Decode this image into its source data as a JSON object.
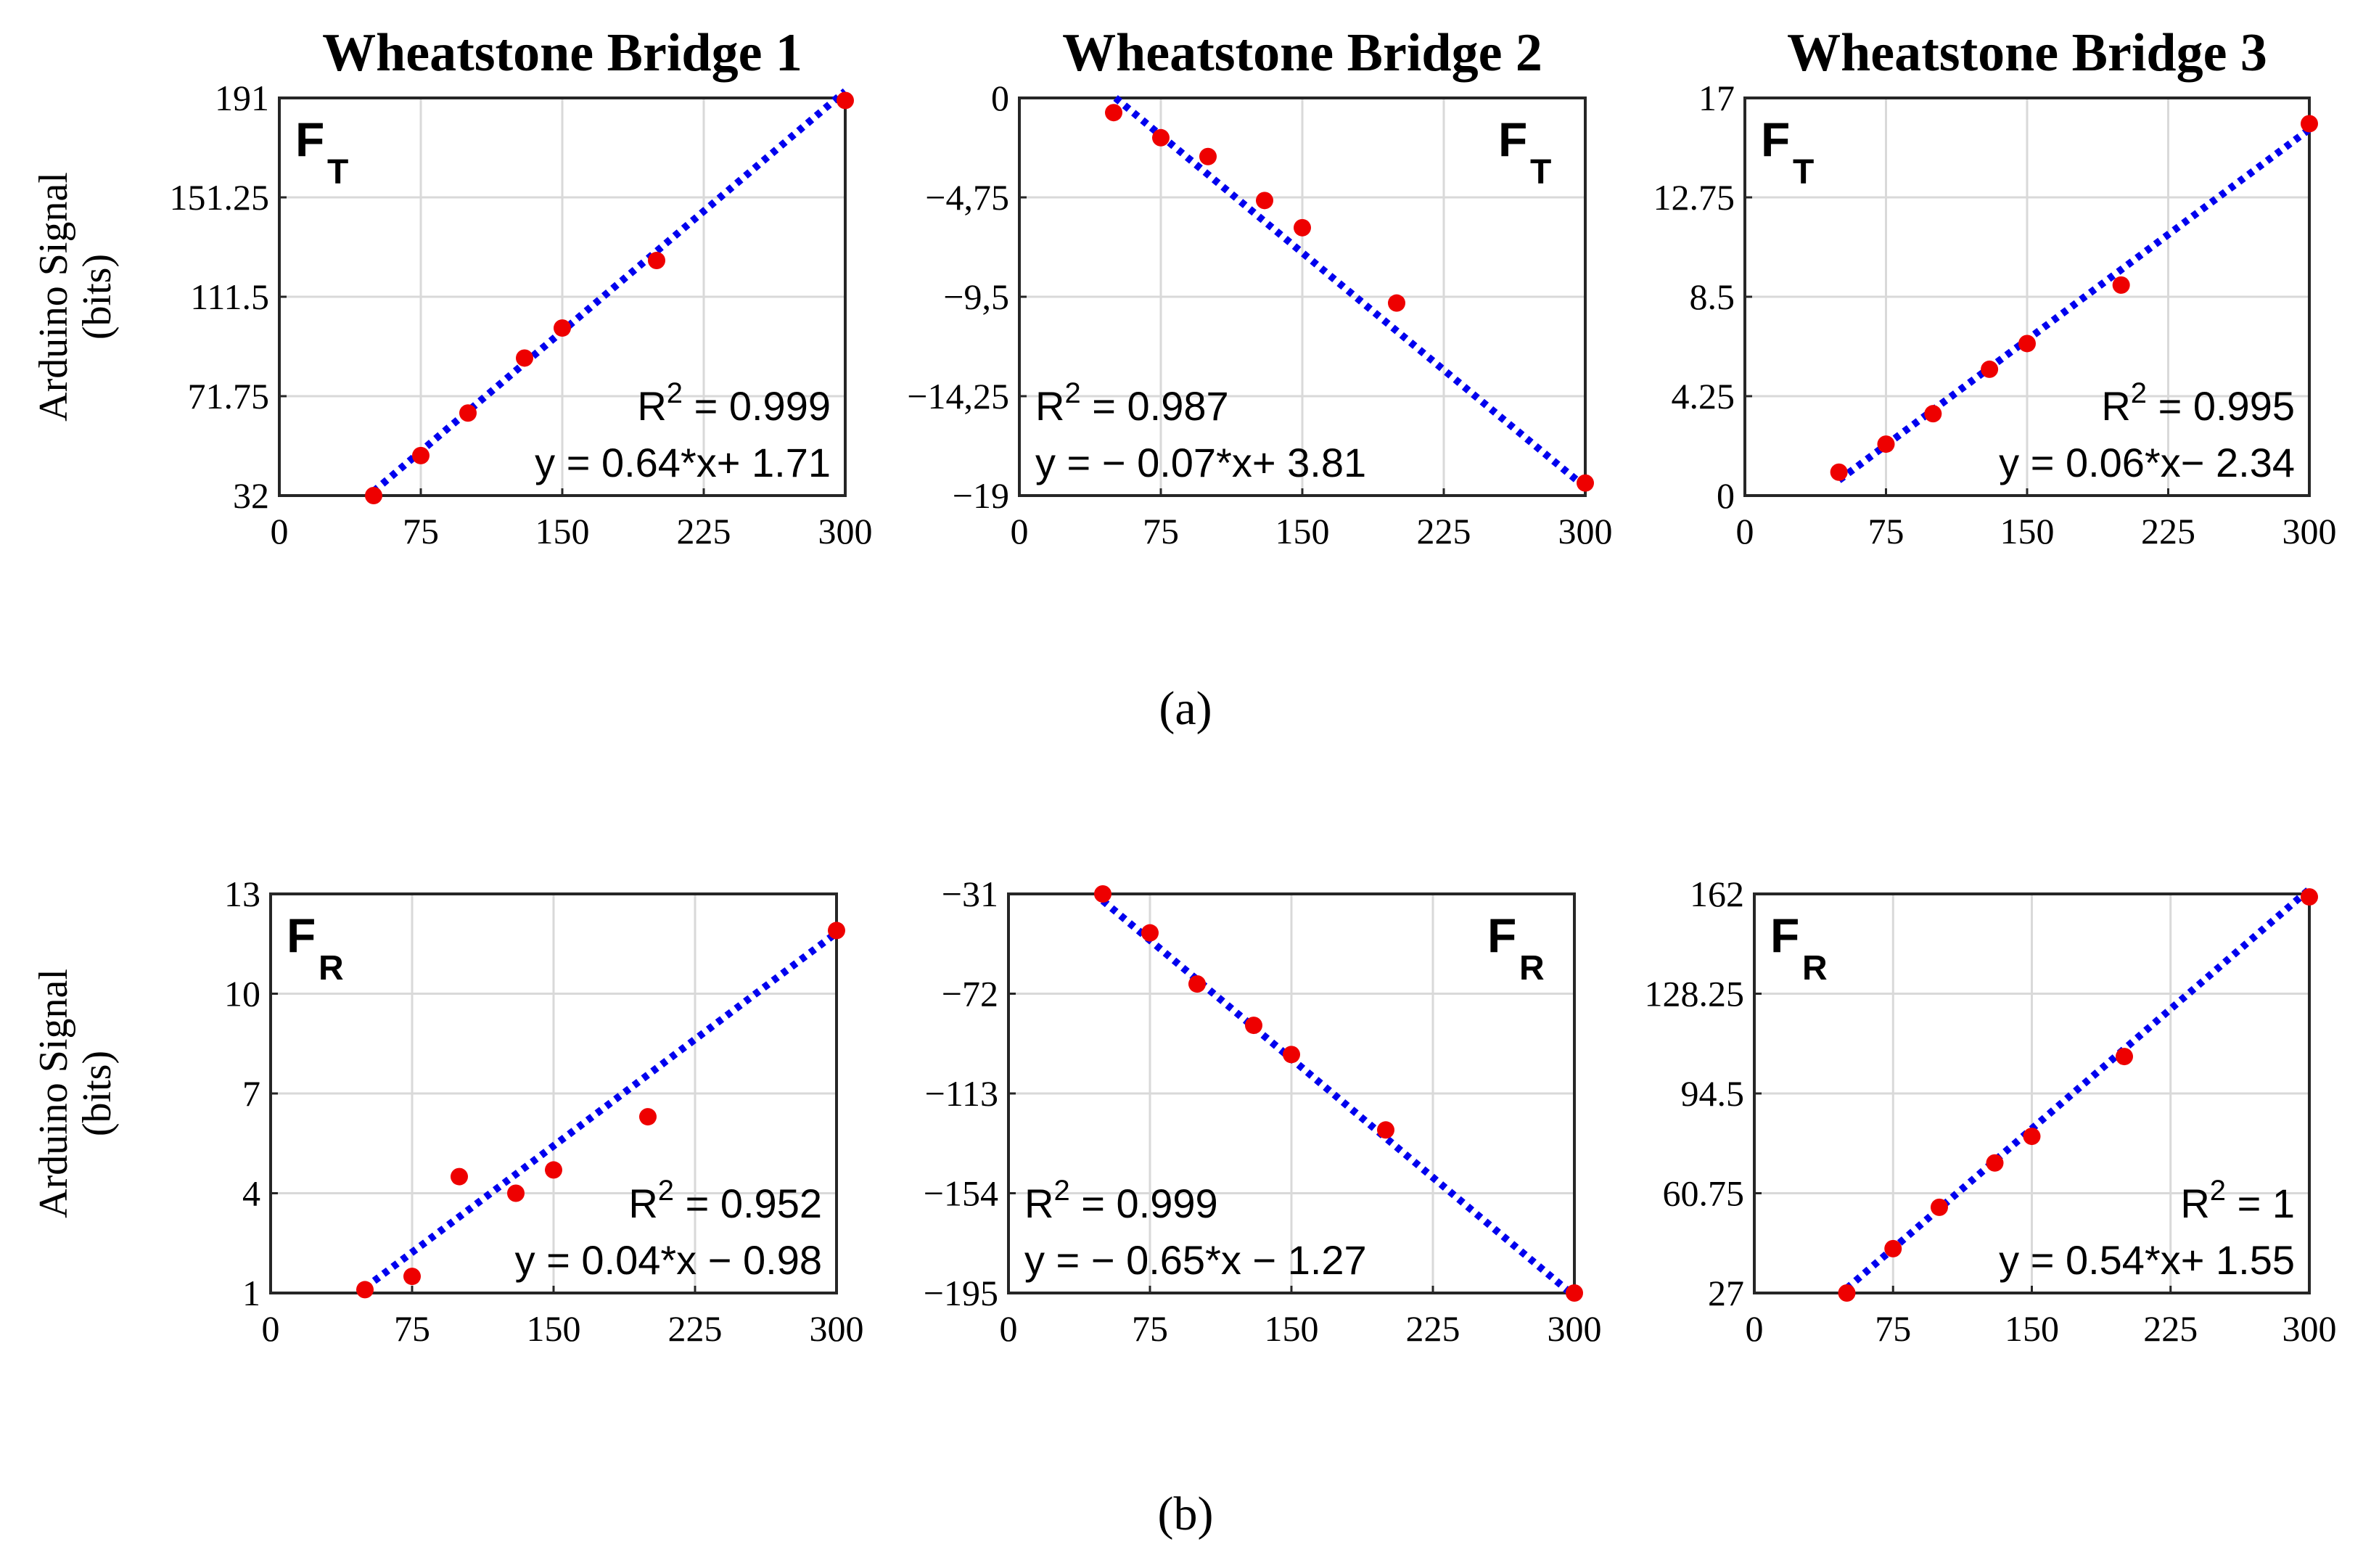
{
  "figure": {
    "caption_a": "(a)",
    "caption_b": "(b)",
    "ylabel_line1": "Arduino Signal",
    "ylabel_line2": "(bits)",
    "colors": {
      "points": "#ee0000",
      "fit_line": "#0000ee",
      "grid": "#d9d9d9",
      "frame": "#262626"
    }
  },
  "chart_data": [
    {
      "id": "a1",
      "type": "scatter",
      "title": "Wheatstone Bridge 1",
      "force": "F",
      "force_sub": "T",
      "force_pos": "top-left",
      "xlim": [
        0,
        300
      ],
      "xticks": [
        "0",
        "75",
        "150",
        "225",
        "300"
      ],
      "ylim": [
        32,
        191
      ],
      "yticks": [
        "32",
        "71.75",
        "111.5",
        "151.25",
        "191"
      ],
      "x": [
        50,
        75,
        100,
        130,
        150,
        200,
        300
      ],
      "y": [
        32,
        48,
        65,
        87,
        99,
        126,
        190
      ],
      "fit": {
        "slope": 0.64,
        "intercept": 1.71,
        "x_range": [
          50,
          300
        ]
      },
      "r2": "R",
      "r2_sup": "2",
      "r2_text": " = 0.999",
      "equation": "y = 0.64*x+ 1.71",
      "annotation_pos": "bottom-right"
    },
    {
      "id": "a2",
      "type": "scatter",
      "title": "Wheatstone Bridge 2",
      "force": "F",
      "force_sub": "T",
      "force_pos": "top-right",
      "xlim": [
        0,
        300
      ],
      "xticks": [
        "0",
        "75",
        "150",
        "225",
        "300"
      ],
      "ylim": [
        -19,
        0
      ],
      "yticks": [
        "−19",
        "−14,25",
        "−9,5",
        "−4,75",
        "0"
      ],
      "x": [
        50,
        75,
        100,
        130,
        150,
        200,
        300
      ],
      "y": [
        -0.7,
        -1.9,
        -2.8,
        -4.9,
        -6.2,
        -9.8,
        -18.4
      ],
      "fit": {
        "slope": -0.0747,
        "intercept": 3.81,
        "x_range": [
          51,
          300
        ]
      },
      "r2": "R",
      "r2_sup": "2",
      "r2_text": " = 0.987",
      "equation": "y = − 0.07*x+ 3.81",
      "annotation_pos": "bottom-left"
    },
    {
      "id": "a3",
      "type": "scatter",
      "title": "Wheatstone Bridge 3",
      "force": "F",
      "force_sub": "T",
      "force_pos": "top-left",
      "xlim": [
        0,
        300
      ],
      "xticks": [
        "0",
        "75",
        "150",
        "225",
        "300"
      ],
      "ylim": [
        0,
        17
      ],
      "yticks": [
        "0",
        "4.25",
        "8.5",
        "12.75",
        "17"
      ],
      "x": [
        50,
        75,
        100,
        130,
        150,
        200,
        300
      ],
      "y": [
        1.0,
        2.2,
        3.5,
        5.4,
        6.5,
        9.0,
        15.9
      ],
      "fit": {
        "slope": 0.06,
        "intercept": -2.34,
        "x_range": [
          50,
          300
        ]
      },
      "r2": "R",
      "r2_sup": "2",
      "r2_text": " = 0.995",
      "equation": "y = 0.06*x−  2.34",
      "annotation_pos": "bottom-right"
    },
    {
      "id": "b1",
      "type": "scatter",
      "title": "",
      "force": "F",
      "force_sub": "R",
      "force_pos": "top-left",
      "xlim": [
        0,
        300
      ],
      "xticks": [
        "0",
        "75",
        "150",
        "225",
        "300"
      ],
      "ylim": [
        1,
        13
      ],
      "yticks": [
        "1",
        "4",
        "7",
        "10",
        "13"
      ],
      "x": [
        50,
        75,
        100,
        130,
        150,
        200,
        300
      ],
      "y": [
        1.1,
        1.5,
        4.5,
        4.0,
        4.7,
        6.3,
        11.9
      ],
      "fit": {
        "slope": 0.0427,
        "intercept": -0.98,
        "x_range": [
          50,
          300
        ]
      },
      "r2": "R",
      "r2_sup": "2",
      "r2_text": " = 0.952",
      "equation": "y = 0.04*x − 0.98",
      "annotation_pos": "bottom-right"
    },
    {
      "id": "b2",
      "type": "scatter",
      "title": "",
      "force": "F",
      "force_sub": "R",
      "force_pos": "top-right",
      "xlim": [
        0,
        300
      ],
      "xticks": [
        "0",
        "75",
        "150",
        "225",
        "300"
      ],
      "ylim": [
        -195,
        -31
      ],
      "yticks": [
        "−195",
        "−154",
        "−113",
        "−72",
        "−31"
      ],
      "x": [
        50,
        75,
        100,
        130,
        150,
        200,
        300
      ],
      "y": [
        -31,
        -47,
        -68,
        -85,
        -97,
        -128,
        -195
      ],
      "fit": {
        "slope": -0.65,
        "intercept": -1.27,
        "x_range": [
          50,
          300
        ]
      },
      "r2": "R",
      "r2_sup": "2",
      "r2_text": " = 0.999",
      "equation": "y = − 0.65*x − 1.27",
      "annotation_pos": "bottom-left"
    },
    {
      "id": "b3",
      "type": "scatter",
      "title": "",
      "force": "F",
      "force_sub": "R",
      "force_pos": "top-left",
      "xlim": [
        0,
        300
      ],
      "xticks": [
        "0",
        "75",
        "150",
        "225",
        "300"
      ],
      "ylim": [
        27,
        162
      ],
      "yticks": [
        "27",
        "60.75",
        "94.5",
        "128.25",
        "162"
      ],
      "x": [
        50,
        75,
        100,
        130,
        150,
        200,
        300
      ],
      "y": [
        27,
        42,
        56,
        71,
        80,
        107,
        161
      ],
      "fit": {
        "slope": 0.54,
        "intercept": 1.55,
        "x_range": [
          50,
          300
        ]
      },
      "r2": "R",
      "r2_sup": "2",
      "r2_text": " = 1",
      "equation": "y = 0.54*x+ 1.55",
      "annotation_pos": "bottom-right"
    }
  ]
}
